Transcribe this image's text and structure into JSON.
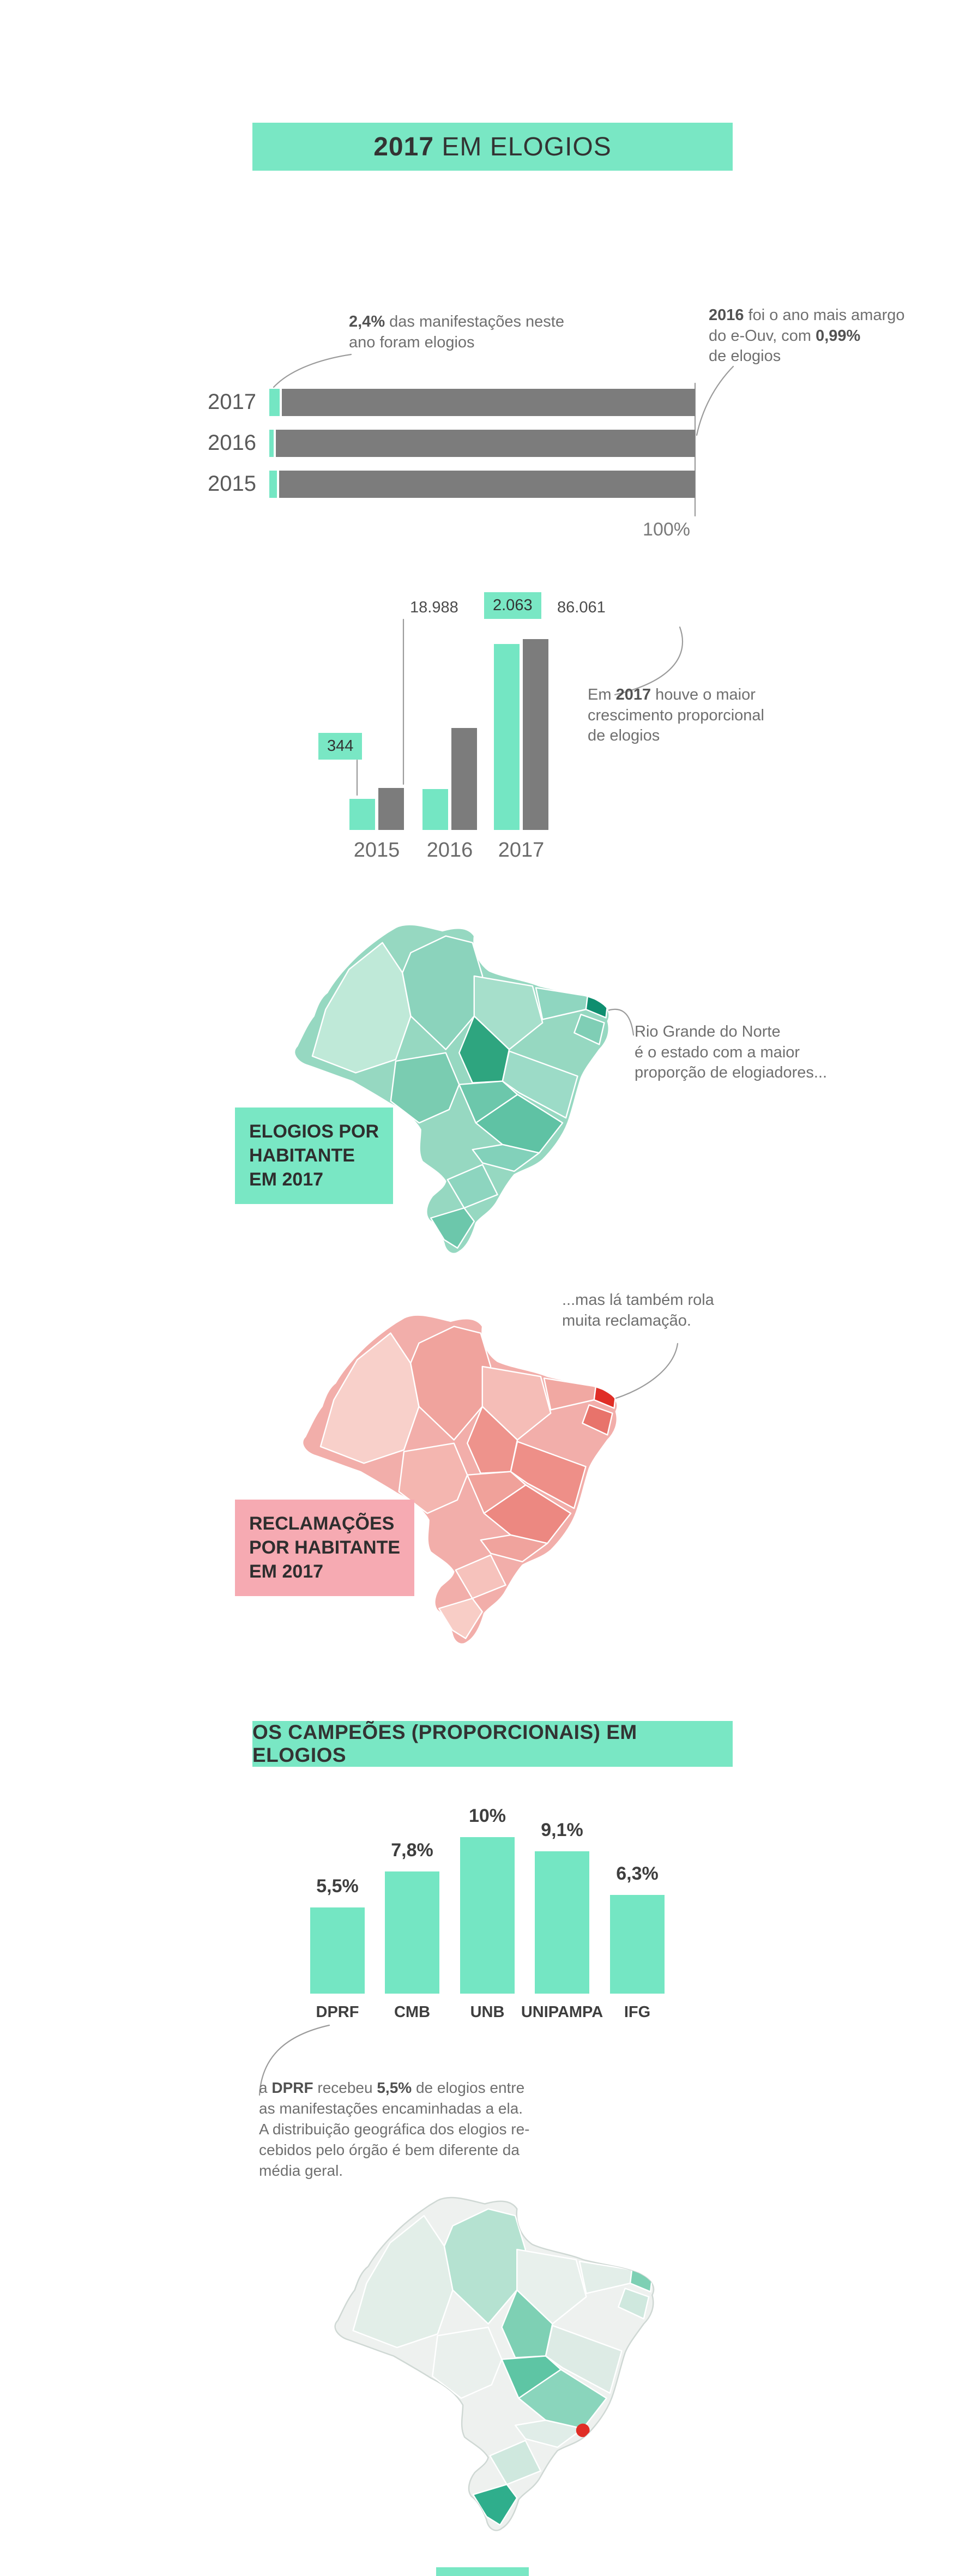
{
  "page": {
    "title_parts": [
      {
        "t": "2017",
        "b": true
      },
      {
        "t": " EM ELOGIOS",
        "b": false
      }
    ],
    "section2_title": "OS CAMPEÕES (PROPORCIONAIS) EM ELOGIOS",
    "colors": {
      "mint": "#79e7c4",
      "pink": "#f6aab2",
      "bar_gray": "#7c7c7c",
      "map_teal_base": "#96d8c1",
      "map_pink_base": "#f2aeaa",
      "highlight_red": "#e02e26",
      "text_dark": "#3c3c3c",
      "text_gray": "#6f6f6f"
    }
  },
  "chart_data": [
    {
      "id": "share_of_manifestacoes_by_year",
      "type": "bar",
      "orientation": "horizontal",
      "categories": [
        "2017",
        "2016",
        "2015"
      ],
      "values": [
        2.4,
        0.99,
        1.8
      ],
      "unit": "% de elogios sobre o total de manifestações",
      "axis_max_label": "100%",
      "note_left_lines": [
        [
          {
            "t": "2,4%",
            "b": true
          },
          {
            "t": " das manifestações neste",
            "b": false
          }
        ],
        [
          {
            "t": "ano foram elogios",
            "b": false
          }
        ]
      ],
      "note_right_lines": [
        [
          {
            "t": "2016",
            "b": true
          },
          {
            "t": " foi o ano mais amargo",
            "b": false
          }
        ],
        [
          {
            "t": "do e-Ouv, com ",
            "b": false
          },
          {
            "t": "0,99%",
            "b": true
          }
        ],
        [
          {
            "t": "de elogios",
            "b": false
          }
        ]
      ]
    },
    {
      "id": "elogios_growth_by_year",
      "type": "bar",
      "categories": [
        "2015",
        "2016",
        "2017"
      ],
      "series": [
        {
          "name": "elogios",
          "color": "#74e6c3",
          "values": [
            344,
            455,
            2063
          ],
          "labels": [
            "344",
            null,
            "2.063"
          ]
        },
        {
          "name": "manifestacoes",
          "color": "#7c7c7c",
          "values": [
            18988,
            46000,
            86061
          ],
          "labels": [
            "18.988",
            null,
            "86.061"
          ]
        }
      ],
      "note_lines": [
        [
          {
            "t": "Em ",
            "b": false
          },
          {
            "t": "2017",
            "b": true
          },
          {
            "t": " houve o maior",
            "b": false
          }
        ],
        [
          {
            "t": "crescimento proporcional",
            "b": false
          }
        ],
        [
          {
            "t": "de elogios",
            "b": false
          }
        ]
      ]
    },
    {
      "id": "campeoes_proporcionais_em_elogios",
      "type": "bar",
      "categories": [
        "DPRF",
        "CMB",
        "UNB",
        "UNIPAMPA",
        "IFG"
      ],
      "values": [
        5.5,
        7.8,
        10,
        9.1,
        6.3
      ],
      "unit": "%",
      "value_labels": [
        "5,5%",
        "7,8%",
        "10%",
        "9,1%",
        "6,3%"
      ],
      "caption_lines": [
        [
          {
            "t": "a ",
            "b": false
          },
          {
            "t": "DPRF",
            "b": true
          },
          {
            "t": " recebeu ",
            "b": false
          },
          {
            "t": "5,5%",
            "b": true
          },
          {
            "t": " de elogios entre",
            "b": false
          }
        ],
        [
          {
            "t": "as manifestações encaminhadas a ela.",
            "b": false
          }
        ],
        [
          {
            "t": "A distribuição geográfica dos elogios re-",
            "b": false
          }
        ],
        [
          {
            "t": "cebidos pelo órgão é bem diferente da",
            "b": false
          }
        ],
        [
          {
            "t": "média geral.",
            "b": false
          }
        ]
      ]
    }
  ],
  "maps": {
    "elogios_por_habitante": {
      "label_lines": [
        [
          {
            "t": "ELOGIOS POR",
            "b": true
          }
        ],
        [
          {
            "t": "HABITANTE",
            "b": true
          }
        ],
        [
          {
            "t": "EM 2017",
            "b": true
          }
        ]
      ],
      "note_lines": [
        [
          {
            "t": "Rio Grande do Norte",
            "b": false
          }
        ],
        [
          {
            "t": "é o estado com a maior",
            "b": false
          }
        ],
        [
          {
            "t": "proporção de elogiadores...",
            "b": false
          }
        ]
      ],
      "highlight": "Rio Grande do Norte",
      "palette": "teal"
    },
    "reclamacoes_por_habitante": {
      "label_lines": [
        [
          {
            "t": "RECLAMAÇÕES",
            "b": true
          }
        ],
        [
          {
            "t": "POR HABITANTE",
            "b": true
          }
        ],
        [
          {
            "t": "EM 2017",
            "b": true
          }
        ]
      ],
      "note_lines": [
        [
          {
            "t": "...mas lá também rola",
            "b": false
          }
        ],
        [
          {
            "t": "muita reclamação.",
            "b": false
          }
        ]
      ],
      "highlight": "Rio Grande do Norte",
      "palette": "pink"
    },
    "dprf_elogios_distribution": {
      "palette": "light-green",
      "highlight_color": "#e02e26"
    }
  }
}
